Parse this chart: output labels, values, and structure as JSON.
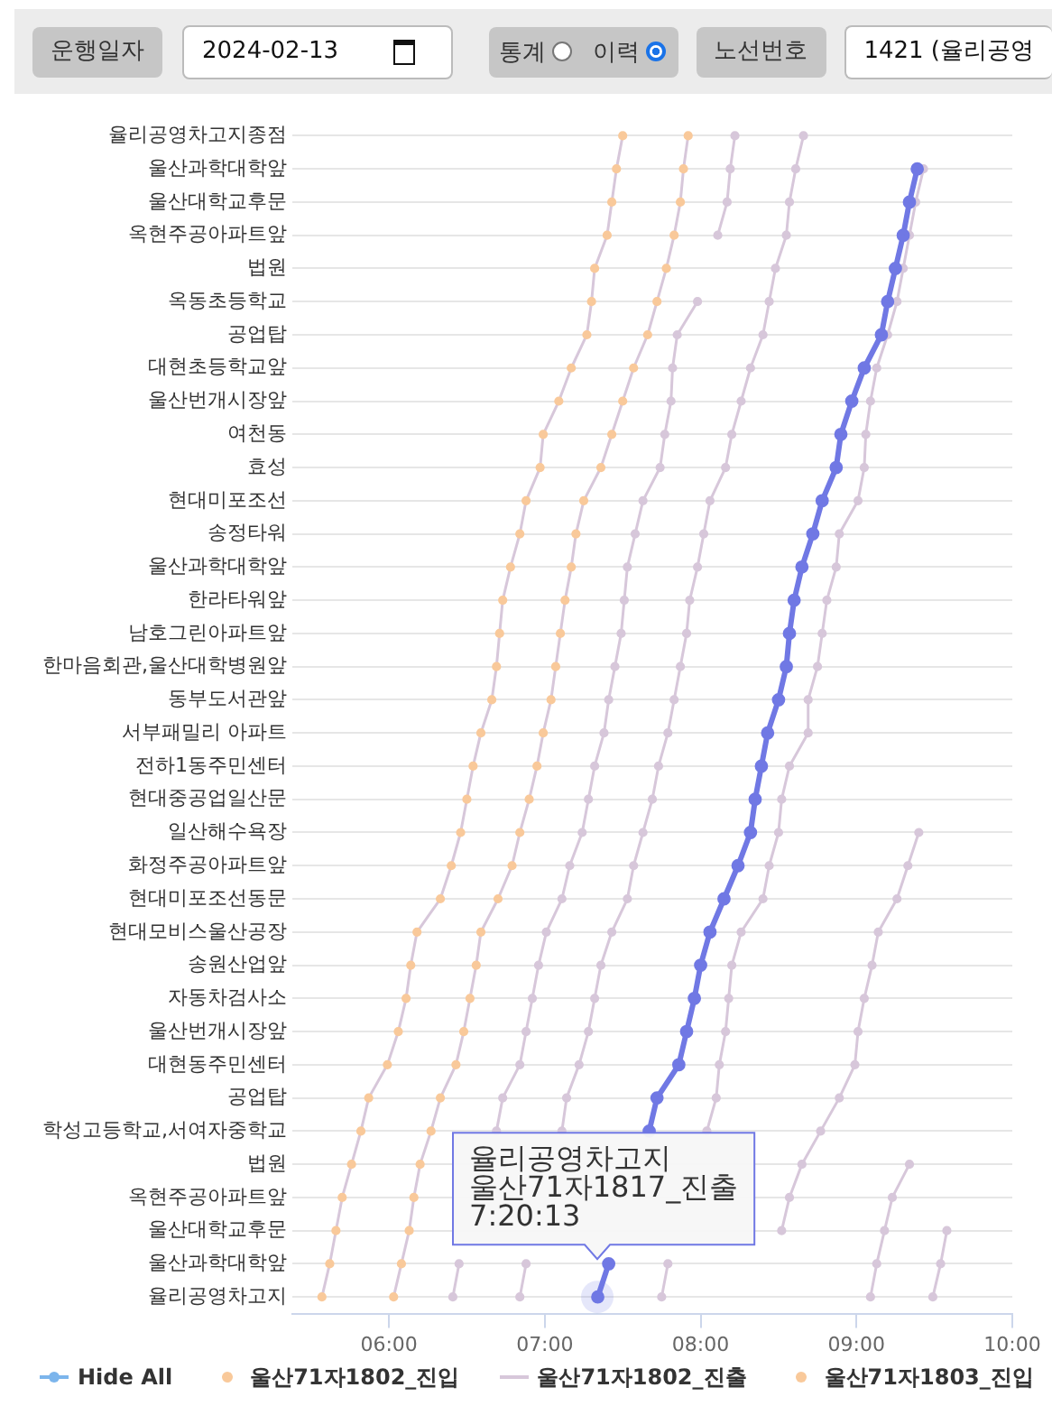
{
  "chart_data": [
    {
      "type": "other",
      "annotations": [
        "운행일자",
        "2024-02-13",
        "통계",
        "이력",
        "노선번호",
        "1421 (율리공영"
      ]
    },
    {
      "type": "line",
      "orientation": "horizontal",
      "categories": [
        "율리공영차고지종점",
        "울산과학대학앞",
        "울산대학교후문",
        "옥현주공아파트앞",
        "법원",
        "옥동초등학교",
        "공업탑",
        "대현초등학교앞",
        "울산번개시장앞",
        "여천동",
        "효성",
        "현대미포조선",
        "송정타워",
        "울산과학대학앞",
        "한라타워앞",
        "남호그린아파트앞",
        "한마음회관,울산대학병원앞",
        "동부도서관앞",
        "서부패밀리 아파트",
        "전하1동주민센터",
        "현대중공업일산문",
        "일산해수욕장",
        "화정주공아파트앞",
        "현대미포조선동문",
        "현대모비스울산공장",
        "송원산업앞",
        "자동차검사소",
        "울산번개시장앞",
        "대현동주민센터",
        "공업탑",
        "학성고등학교,서여자중학교",
        "법원",
        "옥현주공아파트앞",
        "울산대학교후문",
        "울산과학대학앞",
        "율리공영차고지"
      ],
      "xlim": [
        5.38,
        10.0
      ],
      "xticks": [
        {
          "value": 6,
          "label": "06:00"
        },
        {
          "value": 7,
          "label": "07:00"
        },
        {
          "value": 8,
          "label": "08:00"
        },
        {
          "value": 9,
          "label": "09:00"
        },
        {
          "value": 10,
          "label": "10:00"
        }
      ],
      "grid": "y",
      "legend": "bottom",
      "marker": "circle",
      "annotations": [
        "Hide All",
        {
          "text": "율리공영차고지\n울산71자1817_진출\n7:20:13",
          "x": 7.337,
          "y": "율리공영차고지"
        }
      ],
      "series": [
        {
          "color": "#7078e4",
          "values": [
            null,
            9.39,
            9.34,
            9.3,
            9.25,
            9.2,
            9.16,
            9.05,
            8.97,
            8.9,
            8.87,
            8.78,
            8.72,
            8.65,
            8.6,
            8.57,
            8.55,
            8.5,
            8.43,
            8.39,
            8.35,
            8.32,
            8.24,
            8.15,
            8.06,
            8.0,
            7.96,
            7.91,
            7.86,
            7.72,
            7.67,
            null,
            null,
            null,
            7.41,
            7.34
          ]
        },
        {
          "name": "울산71자1802_진입",
          "type": "scatter",
          "color": "#f9c99a",
          "values": [
            7.5,
            7.46,
            7.43,
            7.4,
            7.32,
            7.3,
            7.27,
            7.17,
            7.09,
            6.99,
            6.97,
            6.88,
            6.84,
            6.78,
            6.73,
            6.71,
            6.69,
            6.66,
            6.59,
            6.54,
            6.5,
            6.46,
            6.4,
            6.33,
            6.18,
            6.14,
            6.11,
            6.06,
            5.99,
            5.87,
            5.82,
            5.76,
            5.7,
            5.66,
            5.62,
            5.57
          ]
        },
        {
          "name": "울산71자1802_진출",
          "marker": "none",
          "color": "#d7c7da",
          "values": [
            7.5,
            7.46,
            7.43,
            7.4,
            7.32,
            7.3,
            7.27,
            7.17,
            7.09,
            6.99,
            6.97,
            6.88,
            6.84,
            6.78,
            6.73,
            6.71,
            6.69,
            6.66,
            6.59,
            6.54,
            6.5,
            6.46,
            6.4,
            6.33,
            6.18,
            6.14,
            6.11,
            6.06,
            5.99,
            5.87,
            5.82,
            5.76,
            5.7,
            5.66,
            5.62,
            5.57
          ]
        },
        {
          "name": "울산71자1803_진입",
          "type": "scatter",
          "color": "#f9c99a",
          "values": [
            7.92,
            7.89,
            7.87,
            7.83,
            7.78,
            7.72,
            7.66,
            7.57,
            7.5,
            7.43,
            7.36,
            7.25,
            7.2,
            7.17,
            7.13,
            7.1,
            7.07,
            7.04,
            6.99,
            6.95,
            6.9,
            6.84,
            6.79,
            6.7,
            6.59,
            6.56,
            6.52,
            6.48,
            6.43,
            6.33,
            6.27,
            6.2,
            6.16,
            6.13,
            6.08,
            6.03
          ]
        },
        {
          "marker": "none",
          "color": "#d7c7da",
          "values": [
            7.92,
            7.89,
            7.87,
            7.83,
            7.78,
            7.72,
            7.66,
            7.57,
            7.5,
            7.43,
            7.36,
            7.25,
            7.2,
            7.17,
            7.13,
            7.1,
            7.07,
            7.04,
            6.99,
            6.95,
            6.9,
            6.84,
            6.79,
            6.7,
            6.59,
            6.56,
            6.52,
            6.48,
            6.43,
            6.33,
            6.27,
            6.2,
            6.16,
            6.13,
            6.08,
            6.03
          ]
        },
        {
          "color": "#d7c7da",
          "values": [
            8.22,
            8.19,
            8.17,
            8.11,
            null,
            7.98,
            7.85,
            7.82,
            7.81,
            7.77,
            7.74,
            7.63,
            7.58,
            7.53,
            7.51,
            7.49,
            7.45,
            7.41,
            7.38,
            7.32,
            7.28,
            7.24,
            7.16,
            7.11,
            7.01,
            6.96,
            6.92,
            6.88,
            6.84,
            6.73,
            6.69,
            null,
            null,
            null,
            6.45,
            6.41
          ]
        },
        {
          "color": "#d7c7da",
          "values": [
            8.66,
            8.61,
            8.57,
            8.55,
            8.48,
            8.44,
            8.4,
            8.32,
            8.26,
            8.2,
            8.16,
            8.06,
            8.02,
            7.98,
            7.93,
            7.91,
            7.87,
            7.83,
            7.79,
            7.73,
            7.69,
            7.63,
            7.57,
            7.53,
            7.43,
            7.36,
            7.32,
            7.28,
            7.22,
            7.14,
            7.11,
            null,
            null,
            null,
            6.88,
            6.84
          ]
        },
        {
          "color": "#d7c7da",
          "values": [
            null,
            9.43,
            9.38,
            9.34,
            9.3,
            9.26,
            9.2,
            9.13,
            9.09,
            9.06,
            9.05,
            9.01,
            8.89,
            8.87,
            8.81,
            8.78,
            8.75,
            8.69,
            8.69,
            8.57,
            8.52,
            8.5,
            8.44,
            8.4,
            8.26,
            8.2,
            8.18,
            8.16,
            8.12,
            8.1,
            8.04,
            null,
            null,
            null,
            7.79,
            7.75
          ]
        },
        {
          "color": "#d7c7da",
          "values": [
            null,
            null,
            null,
            null,
            null,
            null,
            null,
            null,
            null,
            null,
            null,
            null,
            null,
            null,
            null,
            null,
            null,
            null,
            null,
            null,
            null,
            9.4,
            9.33,
            9.26,
            9.14,
            9.1,
            9.05,
            9.01,
            8.99,
            8.89,
            8.77,
            8.65,
            8.57,
            8.52,
            null,
            null
          ]
        },
        {
          "color": "#d7c7da",
          "values": [
            null,
            null,
            null,
            null,
            null,
            null,
            null,
            null,
            null,
            null,
            null,
            null,
            null,
            null,
            null,
            null,
            null,
            null,
            null,
            null,
            null,
            null,
            null,
            null,
            null,
            null,
            null,
            null,
            null,
            null,
            null,
            9.34,
            9.23,
            9.18,
            9.13,
            9.09
          ]
        },
        {
          "color": "#d7c7da",
          "values": [
            null,
            null,
            null,
            null,
            null,
            null,
            null,
            null,
            null,
            null,
            null,
            null,
            null,
            null,
            null,
            null,
            null,
            null,
            null,
            null,
            null,
            null,
            null,
            null,
            null,
            null,
            null,
            null,
            null,
            null,
            null,
            null,
            null,
            9.58,
            9.54,
            9.49
          ]
        }
      ]
    }
  ]
}
